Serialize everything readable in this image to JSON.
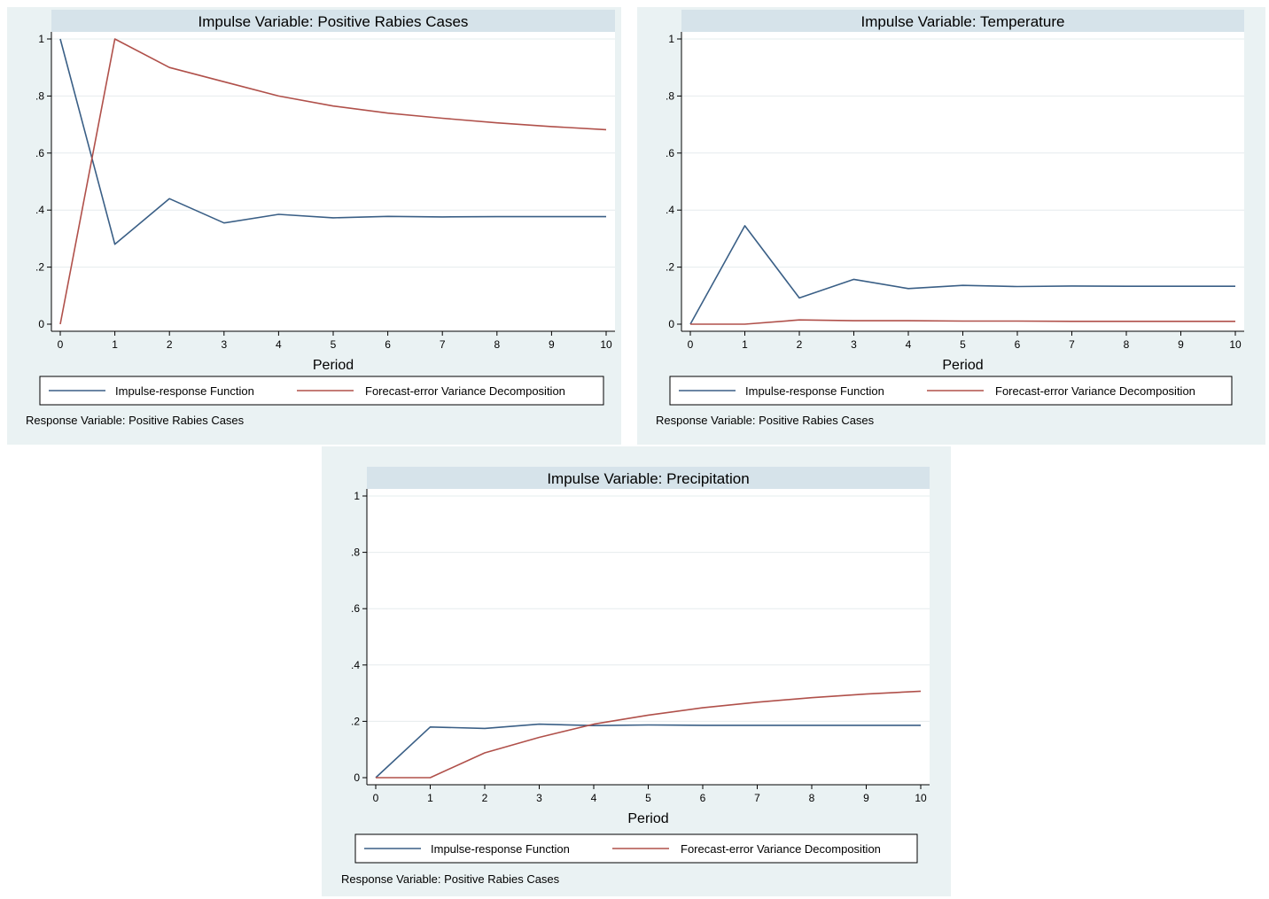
{
  "chart_data": [
    {
      "type": "line",
      "title": "Impulse Variable: Positive Rabies Cases",
      "xlabel": "Period",
      "ylabel": "",
      "note": "Response Variable: Positive Rabies Cases",
      "x": [
        0,
        1,
        2,
        3,
        4,
        5,
        6,
        7,
        8,
        9,
        10
      ],
      "xlim": [
        0,
        10
      ],
      "ylim": [
        0,
        1
      ],
      "yticks": [
        0,
        0.2,
        0.4,
        0.6,
        0.8,
        1
      ],
      "ytick_labels": [
        "0",
        ".2",
        ".4",
        ".6",
        ".8",
        "1"
      ],
      "grid": true,
      "legend_position": "bottom",
      "series": [
        {
          "name": "Impulse-response Function",
          "color": "#3a5f86",
          "values": [
            1.0,
            0.28,
            0.44,
            0.355,
            0.385,
            0.373,
            0.378,
            0.376,
            0.377,
            0.377,
            0.377
          ]
        },
        {
          "name": "Forecast-error Variance Decomposition",
          "color": "#b0504a",
          "values": [
            0.0,
            1.0,
            0.9,
            0.85,
            0.8,
            0.765,
            0.74,
            0.722,
            0.706,
            0.693,
            0.682
          ]
        }
      ]
    },
    {
      "type": "line",
      "title": "Impulse Variable: Temperature",
      "xlabel": "Period",
      "ylabel": "",
      "note": "Response Variable: Positive Rabies Cases",
      "x": [
        0,
        1,
        2,
        3,
        4,
        5,
        6,
        7,
        8,
        9,
        10
      ],
      "xlim": [
        0,
        10
      ],
      "ylim": [
        0,
        1
      ],
      "yticks": [
        0,
        0.2,
        0.4,
        0.6,
        0.8,
        1
      ],
      "ytick_labels": [
        "0",
        ".2",
        ".4",
        ".6",
        ".8",
        "1"
      ],
      "grid": true,
      "legend_position": "bottom",
      "series": [
        {
          "name": "Impulse-response Function",
          "color": "#3a5f86",
          "values": [
            0.0,
            0.345,
            0.092,
            0.157,
            0.125,
            0.136,
            0.132,
            0.134,
            0.133,
            0.133,
            0.133
          ]
        },
        {
          "name": "Forecast-error Variance Decomposition",
          "color": "#b0504a",
          "values": [
            0.0,
            0.0,
            0.015,
            0.012,
            0.012,
            0.011,
            0.011,
            0.01,
            0.01,
            0.01,
            0.01
          ]
        }
      ]
    },
    {
      "type": "line",
      "title": "Impulse Variable: Precipitation",
      "xlabel": "Period",
      "ylabel": "",
      "note": "Response Variable: Positive Rabies Cases",
      "x": [
        0,
        1,
        2,
        3,
        4,
        5,
        6,
        7,
        8,
        9,
        10
      ],
      "xlim": [
        0,
        10
      ],
      "ylim": [
        0,
        1
      ],
      "yticks": [
        0,
        0.2,
        0.4,
        0.6,
        0.8,
        1
      ],
      "ytick_labels": [
        "0",
        ".2",
        ".4",
        ".6",
        ".8",
        "1"
      ],
      "grid": true,
      "legend_position": "bottom",
      "series": [
        {
          "name": "Impulse-response Function",
          "color": "#3a5f86",
          "values": [
            0.0,
            0.18,
            0.175,
            0.19,
            0.185,
            0.187,
            0.186,
            0.186,
            0.186,
            0.186,
            0.186
          ]
        },
        {
          "name": "Forecast-error Variance Decomposition",
          "color": "#b0504a",
          "values": [
            0.0,
            0.0,
            0.088,
            0.143,
            0.19,
            0.222,
            0.248,
            0.268,
            0.284,
            0.297,
            0.307
          ]
        }
      ]
    }
  ]
}
